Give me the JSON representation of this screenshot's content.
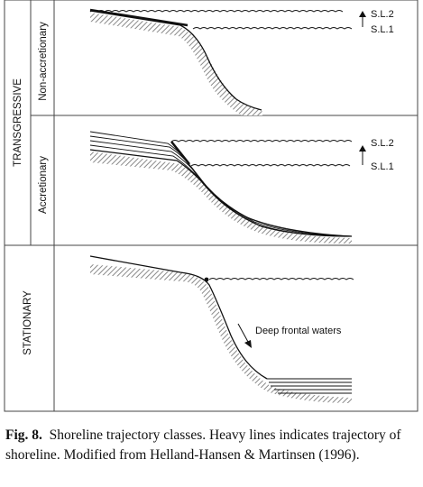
{
  "labels": {
    "transgressive": "TRANSGRESSIVE",
    "non_accretionary": "Non-accretionary",
    "accretionary": "Accretionary",
    "stationary": "STATIONARY"
  },
  "sea_levels": {
    "sl2": "S.L.2",
    "sl1": "S.L.1"
  },
  "annotation": "Deep frontal waters",
  "caption": {
    "figure_number": "Fig. 8.",
    "text": "Shoreline trajectory classes. Heavy lines indicates trajectory of shoreline. Modified from Helland-Hansen & Martinsen (1996)."
  }
}
